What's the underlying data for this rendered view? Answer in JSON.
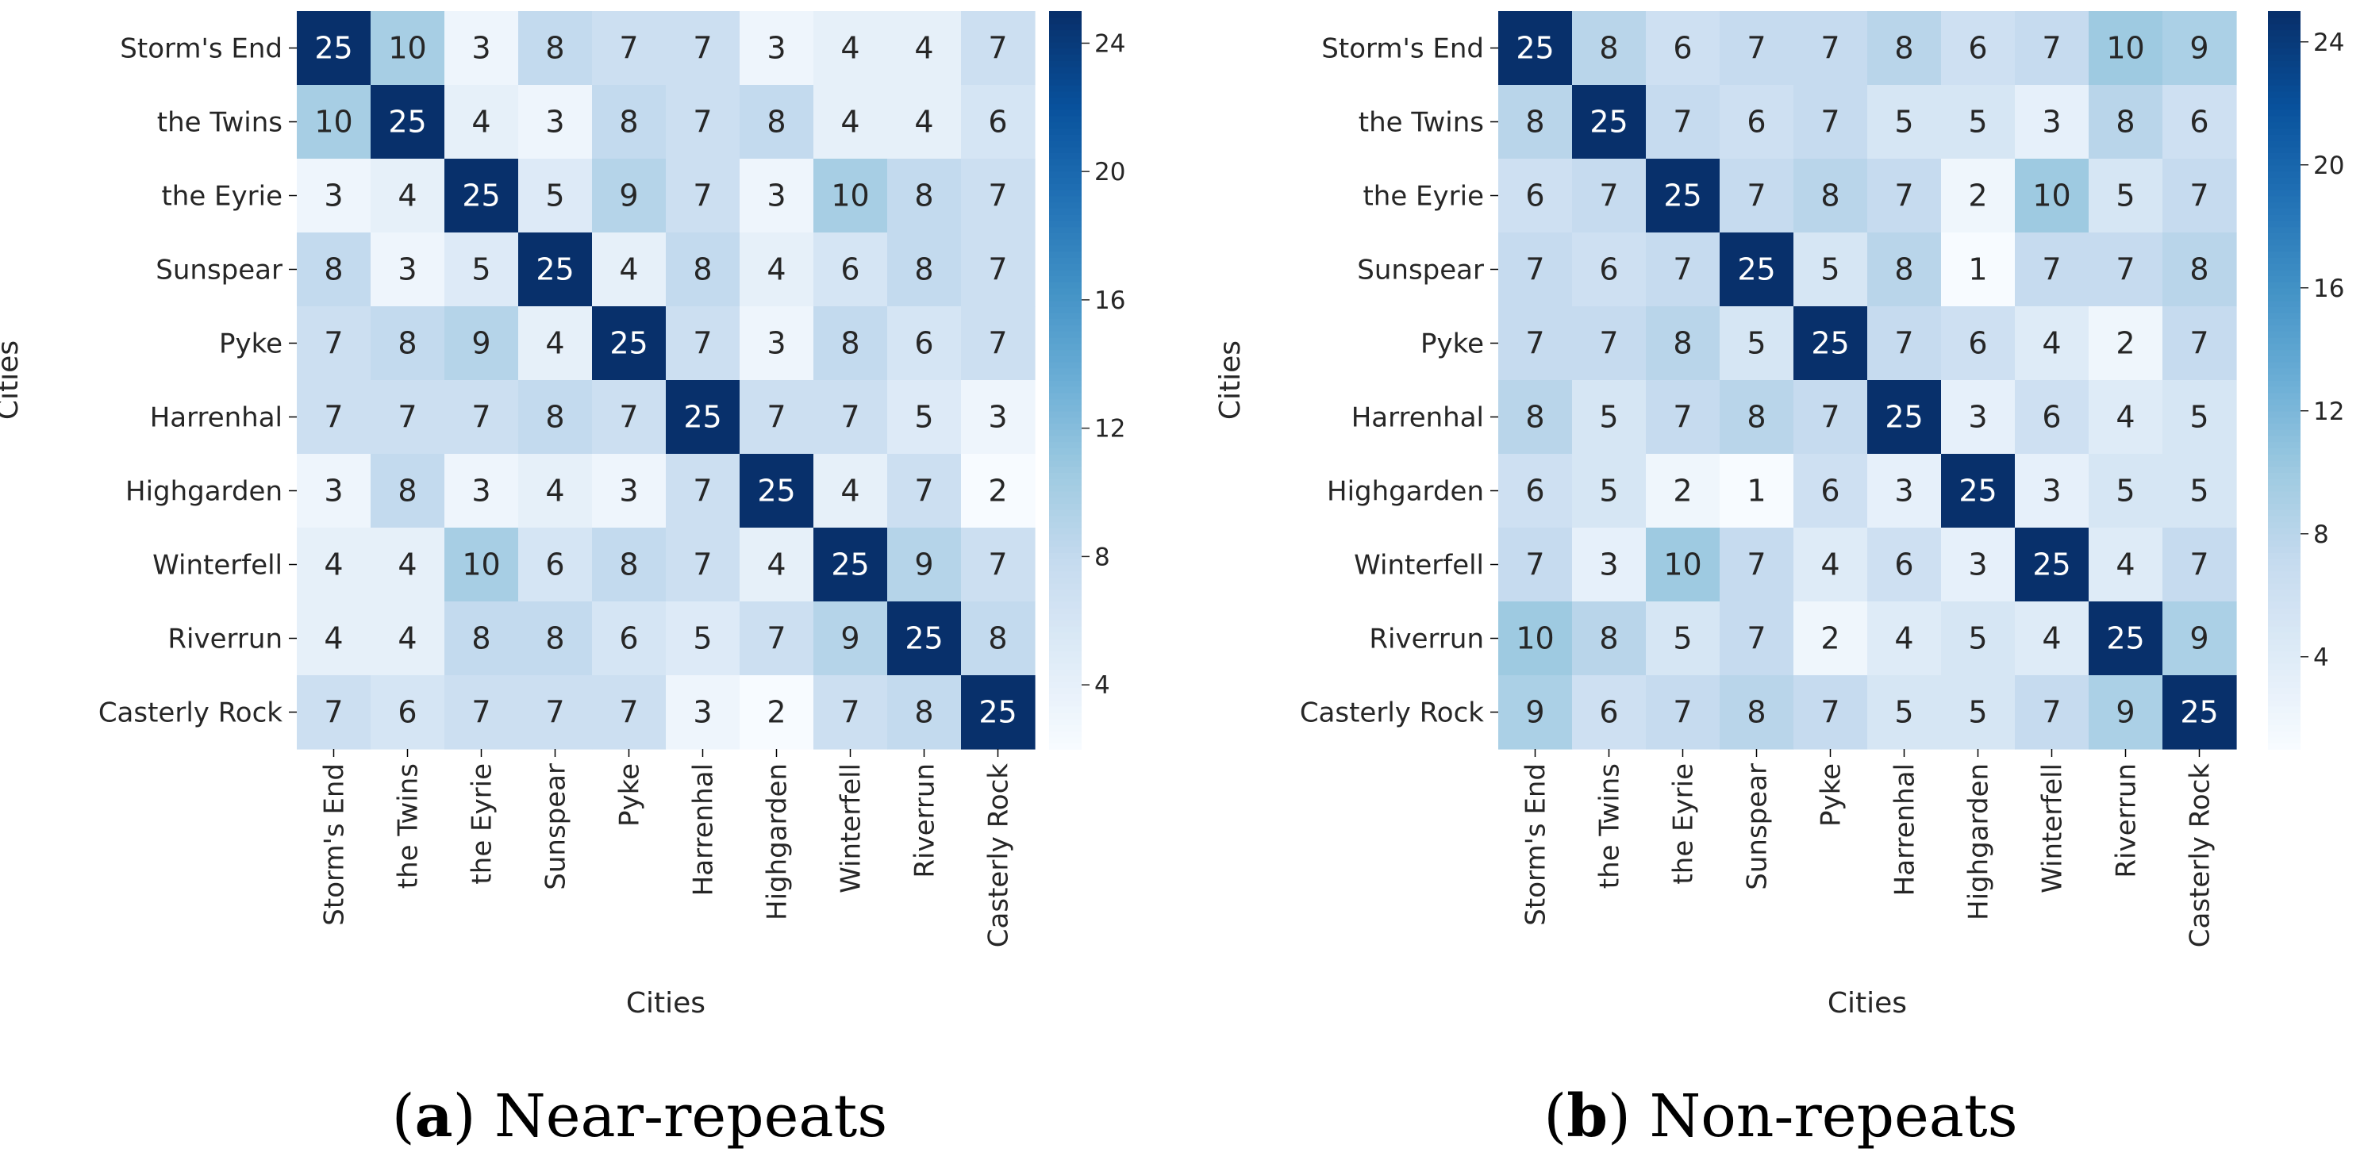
{
  "figure": {
    "captions": [
      {
        "letter": "a",
        "text": " Near-repeats"
      },
      {
        "letter": "b",
        "text": " Non-repeats"
      }
    ]
  },
  "colors": {
    "scale_low": "#f7fbff",
    "scale_high": "#08306b",
    "text_dark": "#262626",
    "text_light": "#ffffff"
  },
  "chart_data": [
    {
      "type": "heatmap",
      "title": "",
      "xlabel": "Cities",
      "ylabel": "Cities",
      "rows": [
        "Storm's End",
        "the Twins",
        "the Eyrie",
        "Sunspear",
        "Pyke",
        "Harrenhal",
        "Highgarden",
        "Winterfell",
        "Riverrun",
        "Casterly Rock"
      ],
      "cols": [
        "Storm's End",
        "the Twins",
        "the Eyrie",
        "Sunspear",
        "Pyke",
        "Harrenhal",
        "Highgarden",
        "Winterfell",
        "Riverrun",
        "Casterly Rock"
      ],
      "values": [
        [
          25,
          10,
          3,
          8,
          7,
          7,
          3,
          4,
          4,
          7
        ],
        [
          10,
          25,
          4,
          3,
          8,
          7,
          8,
          4,
          4,
          6
        ],
        [
          3,
          4,
          25,
          5,
          9,
          7,
          3,
          10,
          8,
          7
        ],
        [
          8,
          3,
          5,
          25,
          4,
          8,
          4,
          6,
          8,
          7
        ],
        [
          7,
          8,
          9,
          4,
          25,
          7,
          3,
          8,
          6,
          7
        ],
        [
          7,
          7,
          7,
          8,
          7,
          25,
          7,
          7,
          5,
          3
        ],
        [
          3,
          8,
          3,
          4,
          3,
          7,
          25,
          4,
          7,
          2
        ],
        [
          4,
          4,
          10,
          6,
          8,
          7,
          4,
          25,
          9,
          7
        ],
        [
          4,
          4,
          8,
          8,
          6,
          5,
          7,
          9,
          25,
          8
        ],
        [
          7,
          6,
          7,
          7,
          7,
          3,
          2,
          7,
          8,
          25
        ]
      ],
      "vmin": 2,
      "vmax": 25,
      "colorbar_ticks": [
        4,
        8,
        12,
        16,
        20,
        24
      ],
      "colormap": "Blues"
    },
    {
      "type": "heatmap",
      "title": "",
      "xlabel": "Cities",
      "ylabel": "Cities",
      "rows": [
        "Storm's End",
        "the Twins",
        "the Eyrie",
        "Sunspear",
        "Pyke",
        "Harrenhal",
        "Highgarden",
        "Winterfell",
        "Riverrun",
        "Casterly Rock"
      ],
      "cols": [
        "Storm's End",
        "the Twins",
        "the Eyrie",
        "Sunspear",
        "Pyke",
        "Harrenhal",
        "Highgarden",
        "Winterfell",
        "Riverrun",
        "Casterly Rock"
      ],
      "values": [
        [
          25,
          8,
          6,
          7,
          7,
          8,
          6,
          7,
          10,
          9
        ],
        [
          8,
          25,
          7,
          6,
          7,
          5,
          5,
          3,
          8,
          6
        ],
        [
          6,
          7,
          25,
          7,
          8,
          7,
          2,
          10,
          5,
          7
        ],
        [
          7,
          6,
          7,
          25,
          5,
          8,
          1,
          7,
          7,
          8
        ],
        [
          7,
          7,
          8,
          5,
          25,
          7,
          6,
          4,
          2,
          7
        ],
        [
          8,
          5,
          7,
          8,
          7,
          25,
          3,
          6,
          4,
          5
        ],
        [
          6,
          5,
          2,
          1,
          6,
          3,
          25,
          3,
          5,
          5
        ],
        [
          7,
          3,
          10,
          7,
          4,
          6,
          3,
          25,
          4,
          7
        ],
        [
          10,
          8,
          5,
          7,
          2,
          4,
          5,
          4,
          25,
          9
        ],
        [
          9,
          6,
          7,
          8,
          7,
          5,
          5,
          7,
          9,
          25
        ]
      ],
      "vmin": 1,
      "vmax": 25,
      "colorbar_ticks": [
        4,
        8,
        12,
        16,
        20,
        24
      ],
      "colormap": "Blues"
    }
  ]
}
